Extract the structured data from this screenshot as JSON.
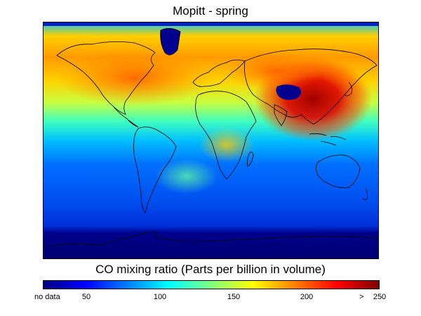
{
  "title": "Mopitt - spring",
  "colorbar": {
    "label": "CO mixing ratio (Parts per billion in volume)",
    "no_data_label": "no data",
    "ticks": [
      "50",
      "100",
      "150",
      "200",
      "250"
    ],
    "tick_values": [
      50,
      100,
      150,
      200,
      250
    ],
    "range": [
      30,
      250
    ],
    "greater_than_symbol": ">",
    "colors": [
      "#00007f",
      "#0000ff",
      "#007fff",
      "#00ffff",
      "#7fff7f",
      "#ffff00",
      "#ff7f00",
      "#ff0000",
      "#7f0000"
    ]
  },
  "map": {
    "type": "global CO concentration field",
    "projection": "equirectangular",
    "no_data_color": "#00006e"
  }
}
